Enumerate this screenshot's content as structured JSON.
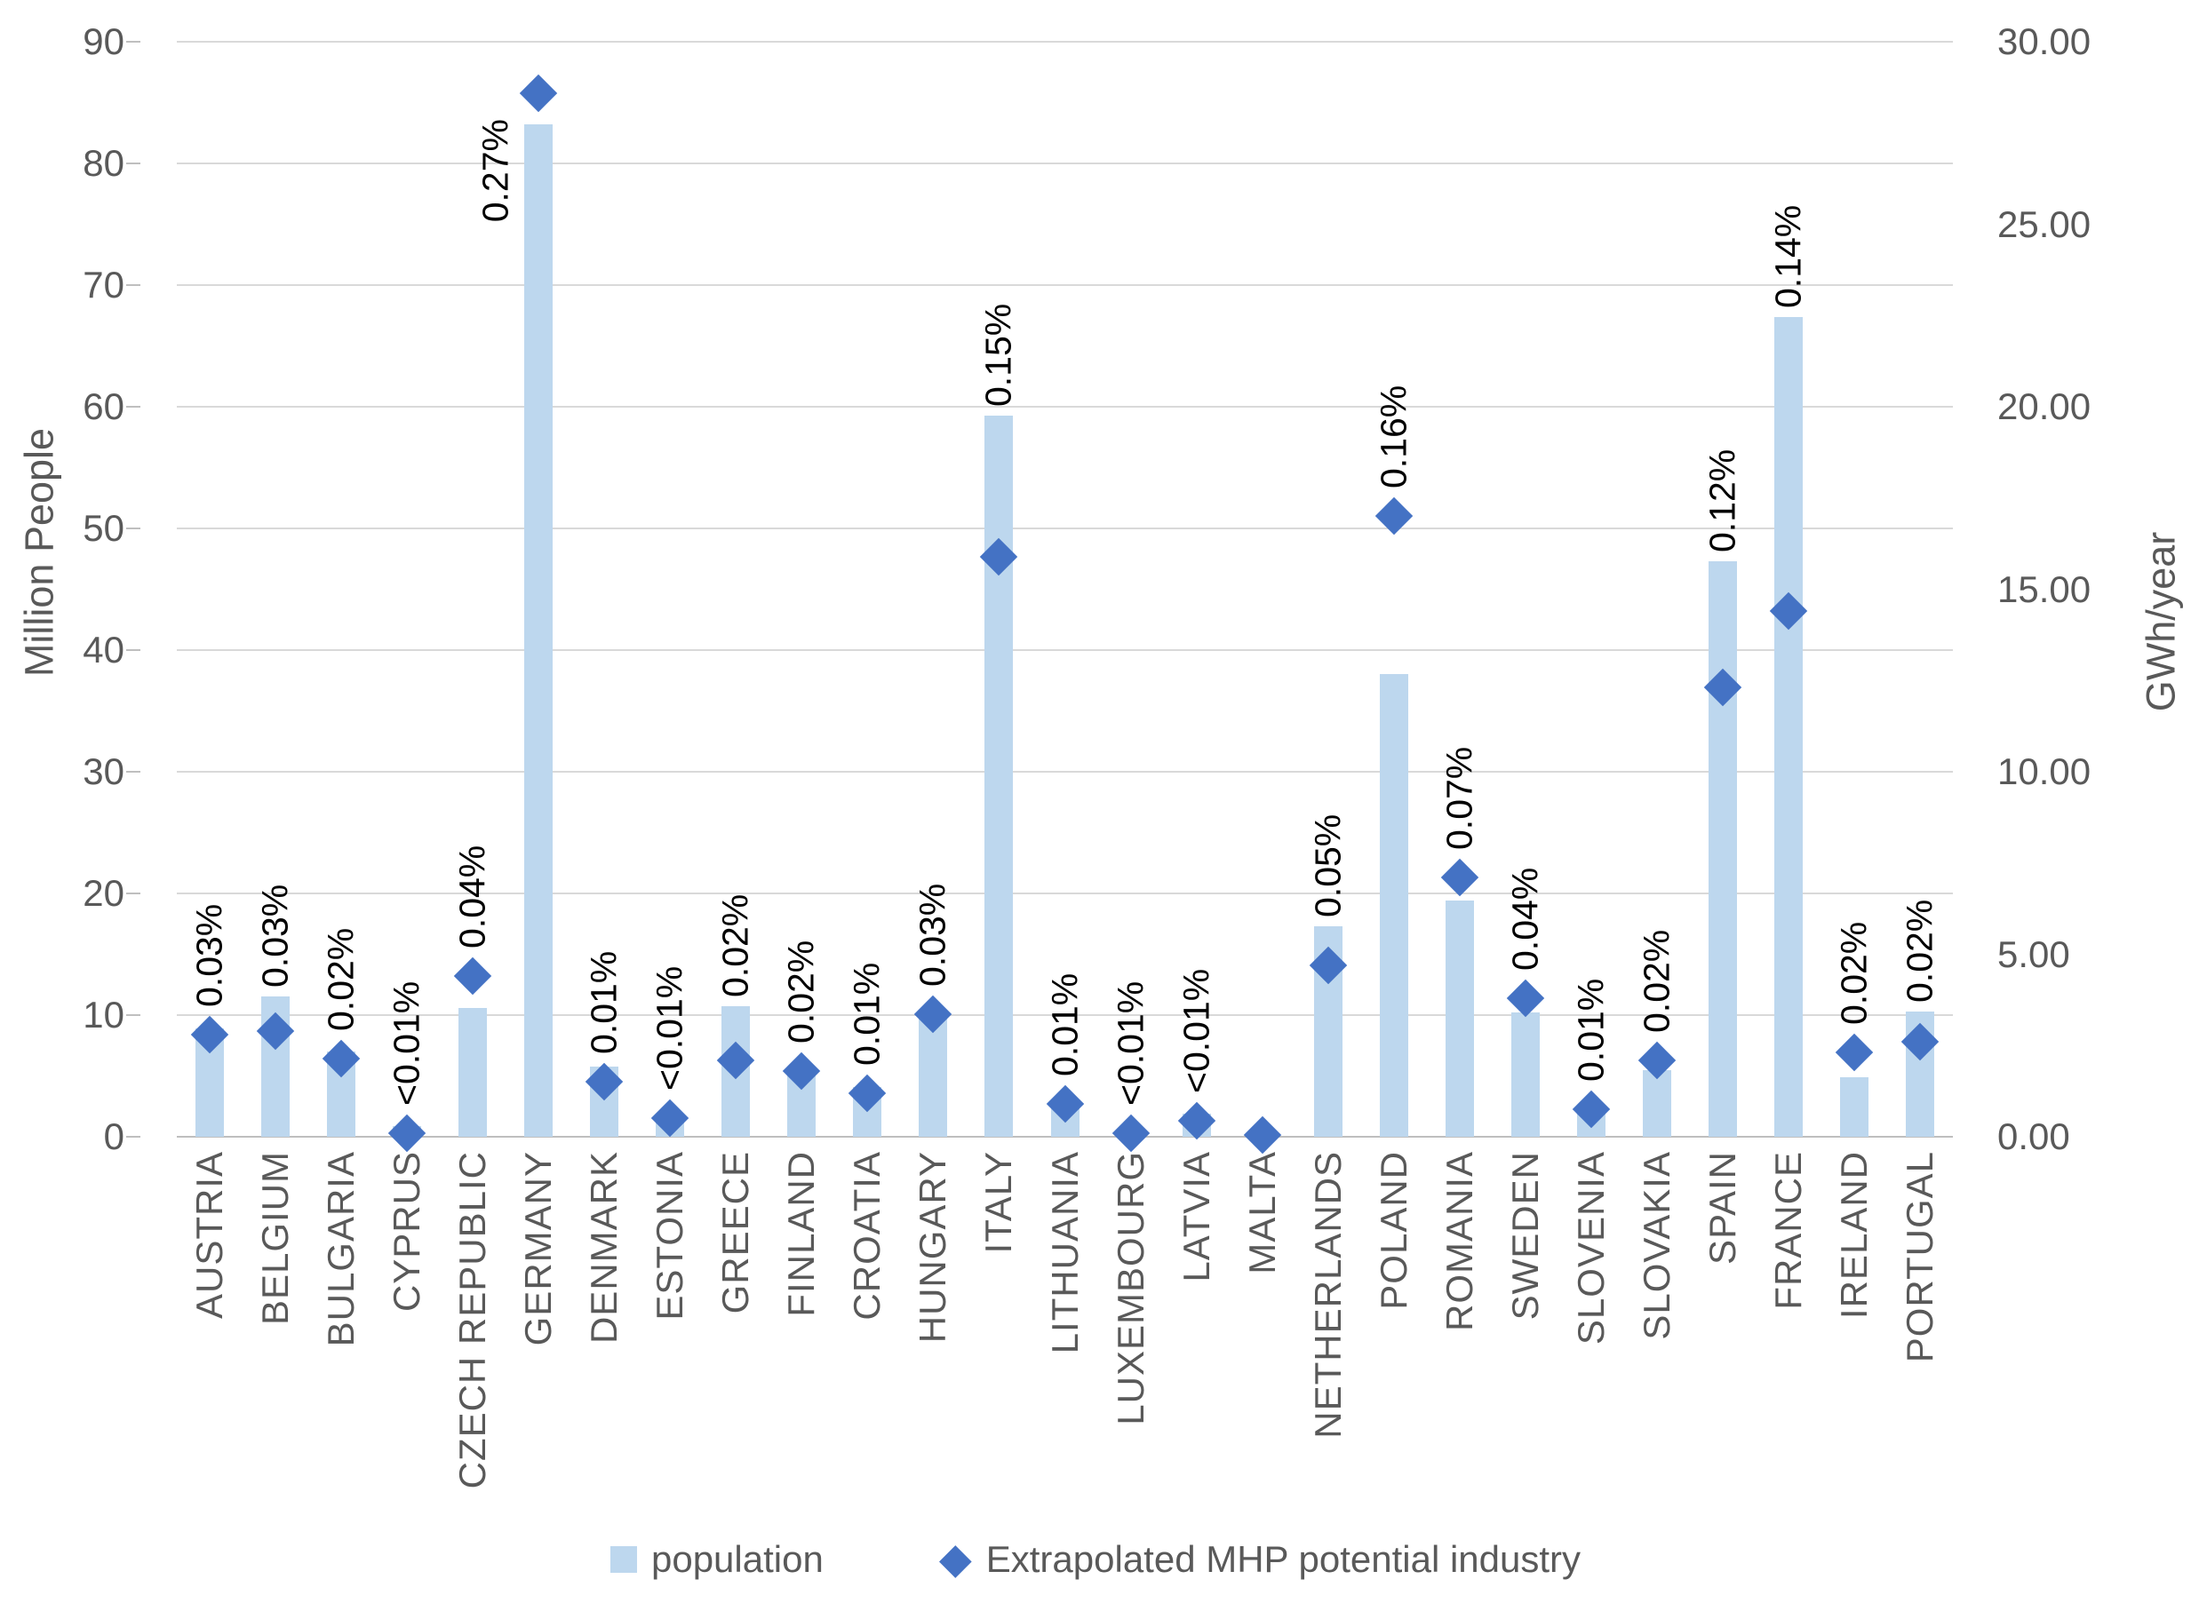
{
  "chart": {
    "left_axis": {
      "title": "Million People",
      "tick_labels": [
        "0",
        "10",
        "20",
        "30",
        "40",
        "50",
        "60",
        "70",
        "80",
        "90"
      ],
      "min": 0,
      "max": 90,
      "step": 10
    },
    "right_axis": {
      "title": "GWh/year",
      "tick_labels": [
        "0.00",
        "5.00",
        "10.00",
        "15.00",
        "20.00",
        "25.00",
        "30.00"
      ],
      "min": 0,
      "max": 30,
      "step": 5
    },
    "colors": {
      "bar": "#bdd7ee",
      "diamond": "#4472c4",
      "gridline": "#d9d9d9",
      "axis_text": "#595959",
      "data_label_text": "#000000"
    }
  },
  "chart_data": {
    "type": "bar",
    "subtype": "dual-axis bar + diamond scatter",
    "title": "",
    "xlabel": "",
    "ylabel_left": "Million People",
    "ylabel_right": "GWh/year",
    "left_ylim": [
      0,
      90
    ],
    "right_ylim": [
      0,
      30
    ],
    "grid": true,
    "legend_position": "bottom",
    "categories": [
      "AUSTRIA",
      "BELGIUM",
      "BULGARIA",
      "CYPRUS",
      "CZECH REPUBLIC",
      "GERMANY",
      "DENMARK",
      "ESTONIA",
      "GREECE",
      "FINLAND",
      "CROATIA",
      "HUNGARY",
      "ITALY",
      "LITHUANIA",
      "LUXEMBOURG",
      "LATVIA",
      "MALTA",
      "NETHERLANDS",
      "POLAND",
      "ROMANIA",
      "SWEDEN",
      "SLOVENIA",
      "SLOVAKIA",
      "SPAIN",
      "FRANCE",
      "IRELAND",
      "PORTUGAL"
    ],
    "series": [
      {
        "name": "population",
        "type": "bar",
        "axis": "left",
        "unit": "Million People",
        "color": "#bdd7ee",
        "values": [
          8.9,
          11.5,
          7.0,
          0.9,
          10.6,
          83.2,
          5.8,
          1.3,
          10.7,
          5.5,
          4.1,
          9.8,
          59.3,
          2.8,
          0.6,
          1.9,
          0.5,
          17.3,
          38.0,
          19.4,
          10.25,
          2.1,
          5.5,
          47.3,
          67.4,
          4.9,
          10.3
        ]
      },
      {
        "name": "Extrapolated MHP potential industry",
        "type": "scatter-diamond",
        "axis": "right",
        "unit": "GWh/year",
        "color": "#4472c4",
        "values": [
          2.8,
          2.9,
          2.15,
          0.1,
          4.4,
          28.6,
          1.5,
          0.5,
          2.1,
          1.8,
          1.2,
          3.35,
          15.9,
          0.9,
          0.1,
          0.45,
          0.05,
          4.7,
          17.0,
          7.1,
          3.8,
          0.75,
          2.1,
          12.3,
          14.4,
          2.3,
          2.6
        ]
      }
    ],
    "point_labels": [
      "0.03%",
      "0.03%",
      "0.02%",
      "<0.01%",
      "0.04%",
      "0.27%",
      "0.01%",
      "<0.01%",
      "0.02%",
      "0.02%",
      "0.01%",
      "0.03%",
      "0.15%",
      "0.01%",
      "<0.01%",
      "<0.01%",
      "",
      "0.05%",
      "0.16%",
      "0.07%",
      "0.04%",
      "0.01%",
      "0.02%",
      "0.12%",
      "0.14%",
      "0.02%",
      "0.02%"
    ]
  }
}
